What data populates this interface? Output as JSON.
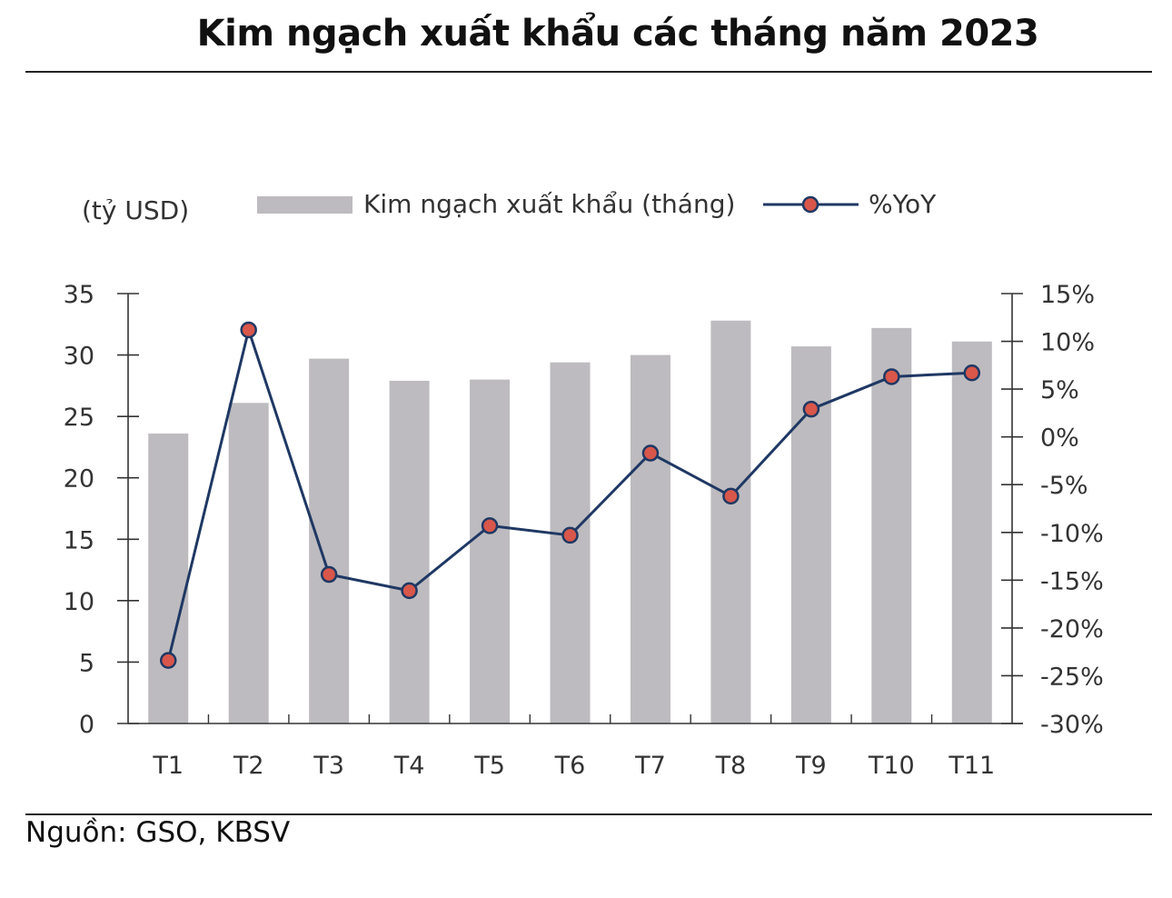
{
  "title": "Kim ngạch xuất khẩu các tháng năm 2023",
  "source": "Nguồn: GSO, KBSV",
  "colors": {
    "bar": "#bdbbbf",
    "line": "#1f3864",
    "marker": "#d8574a",
    "axis": "#333333",
    "text": "#333333"
  },
  "chart_data": {
    "type": "bar+line",
    "unit_label": "(tỷ USD)",
    "categories": [
      "T1",
      "T2",
      "T3",
      "T4",
      "T5",
      "T6",
      "T7",
      "T8",
      "T9",
      "T10",
      "T11"
    ],
    "series": [
      {
        "name": "Kim ngạch xuất khẩu (tháng)",
        "type": "bar",
        "axis": "left",
        "values": [
          23.6,
          26.1,
          29.7,
          27.9,
          28.0,
          29.4,
          30.0,
          32.8,
          30.7,
          32.2,
          31.1
        ]
      },
      {
        "name": "%YoY",
        "type": "line",
        "axis": "right",
        "values": [
          -23.4,
          11.2,
          -14.4,
          -16.1,
          -9.3,
          -10.3,
          -1.7,
          -6.2,
          2.9,
          6.3,
          6.7
        ]
      }
    ],
    "y_left": {
      "min": 0,
      "max": 35,
      "ticks": [
        "0",
        "5",
        "10",
        "15",
        "20",
        "25",
        "30",
        "35"
      ]
    },
    "y_right": {
      "min": -30,
      "max": 15,
      "ticks": [
        "-30%",
        "-25%",
        "-20%",
        "-15%",
        "-10%",
        "-5%",
        "0%",
        "5%",
        "10%",
        "15%"
      ]
    },
    "legend_position": "top",
    "grid": false
  }
}
